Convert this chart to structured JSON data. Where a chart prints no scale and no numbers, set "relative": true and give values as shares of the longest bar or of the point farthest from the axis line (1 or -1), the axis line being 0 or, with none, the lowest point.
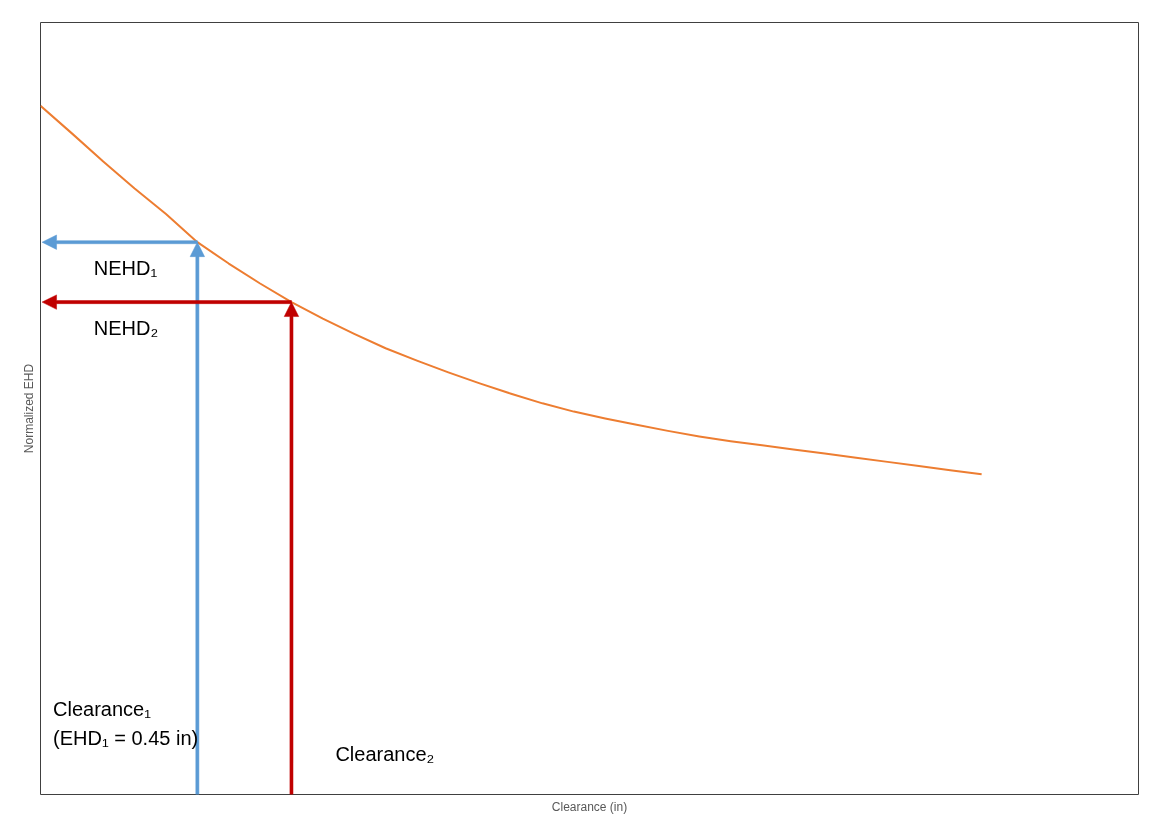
{
  "chart_data": {
    "type": "line",
    "relative": true,
    "xlabel": "Clearance (in)",
    "ylabel": "Normalized EHD",
    "categories": [
      null,
      null,
      null,
      null,
      null,
      null,
      null,
      null,
      null,
      null,
      null,
      null,
      null,
      null,
      null,
      null,
      null,
      null,
      null,
      null,
      null,
      null,
      null,
      null,
      null,
      null,
      null,
      null,
      null,
      null,
      null,
      null,
      null,
      null,
      null,
      null
    ],
    "series": [
      {
        "color": "#ed7d31",
        "values": [
          1.0,
          0.96,
          0.919,
          0.88,
          0.843,
          0.802,
          0.771,
          0.742,
          0.715,
          0.691,
          0.669,
          0.648,
          0.63,
          0.613,
          0.597,
          0.582,
          0.568,
          0.556,
          0.546,
          0.537,
          0.528,
          0.52,
          0.513,
          0.507,
          0.501,
          0.495,
          0.489,
          0.483,
          0.477,
          0.471,
          0.465,
          null,
          null,
          null,
          null,
          null
        ]
      }
    ],
    "ref_lines": [
      {
        "axis": "y",
        "value": 0.802,
        "label": "NEHD₁",
        "color": "#5b9bd5"
      },
      {
        "axis": "y",
        "value": 0.715,
        "label": "NEHD₂",
        "color": "#c00000"
      }
    ],
    "annotations": [
      "Clearance₁\n(EHD₁ = 0.45 in)",
      "Clearance₂"
    ]
  }
}
